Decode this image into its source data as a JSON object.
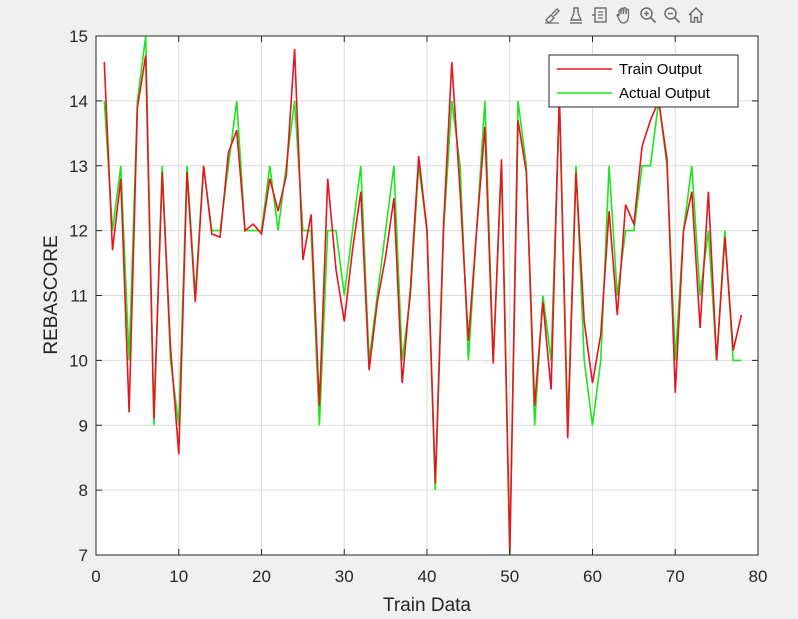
{
  "toolbar": {
    "items": [
      {
        "icon": "brush-icon"
      },
      {
        "icon": "datatip-icon"
      },
      {
        "icon": "data-cursor-icon"
      },
      {
        "icon": "pan-hand-icon"
      },
      {
        "icon": "zoom-in-icon"
      },
      {
        "icon": "zoom-out-icon"
      },
      {
        "icon": "home-icon"
      }
    ]
  },
  "chart_data": {
    "type": "line",
    "xlabel": "Train Data",
    "ylabel": "REBASCORE",
    "xlim": [
      0,
      80
    ],
    "ylim": [
      7,
      15
    ],
    "xticks": [
      0,
      10,
      20,
      30,
      40,
      50,
      60,
      70,
      80
    ],
    "yticks": [
      7,
      8,
      9,
      10,
      11,
      12,
      13,
      14,
      15
    ],
    "grid": true,
    "legend_position": "top-right",
    "series": [
      {
        "name": "Train Output",
        "color": "#e8141e",
        "x": [
          1,
          2,
          3,
          4,
          5,
          6,
          7,
          8,
          9,
          10,
          11,
          12,
          13,
          14,
          15,
          16,
          17,
          18,
          19,
          20,
          21,
          22,
          23,
          24,
          25,
          26,
          27,
          28,
          29,
          30,
          31,
          32,
          33,
          34,
          35,
          36,
          37,
          38,
          39,
          40,
          41,
          42,
          43,
          44,
          45,
          46,
          47,
          48,
          49,
          50,
          51,
          52,
          53,
          54,
          55,
          56,
          57,
          58,
          59,
          60,
          61,
          62,
          63,
          64,
          65,
          66,
          67,
          68,
          69,
          70,
          71,
          72,
          73,
          74,
          75,
          76,
          77,
          78
        ],
        "y": [
          14.6,
          11.7,
          12.8,
          9.2,
          13.9,
          14.7,
          9.1,
          12.9,
          10.2,
          8.55,
          12.9,
          10.9,
          13.0,
          11.95,
          11.9,
          13.2,
          13.55,
          12.0,
          12.1,
          11.95,
          12.8,
          12.3,
          12.85,
          14.8,
          11.55,
          12.25,
          9.3,
          12.8,
          11.4,
          10.6,
          11.7,
          12.6,
          9.85,
          10.9,
          11.6,
          12.5,
          9.65,
          11.1,
          13.15,
          12.0,
          8.1,
          12.1,
          14.6,
          12.6,
          10.3,
          12.0,
          13.6,
          9.95,
          13.1,
          7.05,
          13.7,
          12.9,
          9.3,
          10.9,
          9.55,
          14.1,
          8.8,
          12.9,
          10.6,
          9.65,
          10.4,
          12.3,
          10.7,
          12.4,
          12.1,
          13.3,
          13.7,
          14.0,
          13.1,
          9.5,
          12.0,
          12.6,
          10.5,
          12.6,
          10.0,
          11.9,
          10.15,
          10.7
        ]
      },
      {
        "name": "Actual Output",
        "color": "#1ee61e",
        "x": [
          1,
          2,
          3,
          4,
          5,
          6,
          7,
          8,
          9,
          10,
          11,
          12,
          13,
          14,
          15,
          16,
          17,
          18,
          19,
          20,
          21,
          22,
          23,
          24,
          25,
          26,
          27,
          28,
          29,
          30,
          31,
          32,
          33,
          34,
          35,
          36,
          37,
          38,
          39,
          40,
          41,
          42,
          43,
          44,
          45,
          46,
          47,
          48,
          49,
          50,
          51,
          52,
          53,
          54,
          55,
          56,
          57,
          58,
          59,
          60,
          61,
          62,
          63,
          64,
          65,
          66,
          67,
          68,
          69,
          70,
          71,
          72,
          73,
          74,
          75,
          76,
          77,
          78
        ],
        "y": [
          14.0,
          12.0,
          13.0,
          10.0,
          14.0,
          15.0,
          9.0,
          13.0,
          10.0,
          9.0,
          13.0,
          11.0,
          13.0,
          12.0,
          12.0,
          13.0,
          14.0,
          12.0,
          12.0,
          12.0,
          13.0,
          12.0,
          13.0,
          14.0,
          12.0,
          12.0,
          9.0,
          12.0,
          12.0,
          11.0,
          12.0,
          13.0,
          10.0,
          11.0,
          12.0,
          13.0,
          10.0,
          11.0,
          13.0,
          12.0,
          8.0,
          12.0,
          14.0,
          13.0,
          10.0,
          12.0,
          14.0,
          10.0,
          13.0,
          7.0,
          14.0,
          13.0,
          9.0,
          11.0,
          10.0,
          14.0,
          9.0,
          13.0,
          10.0,
          9.0,
          10.0,
          13.0,
          11.0,
          12.0,
          12.0,
          13.0,
          13.0,
          14.0,
          13.0,
          10.0,
          12.0,
          13.0,
          11.0,
          12.0,
          10.0,
          12.0,
          10.0,
          10.0
        ]
      }
    ]
  }
}
